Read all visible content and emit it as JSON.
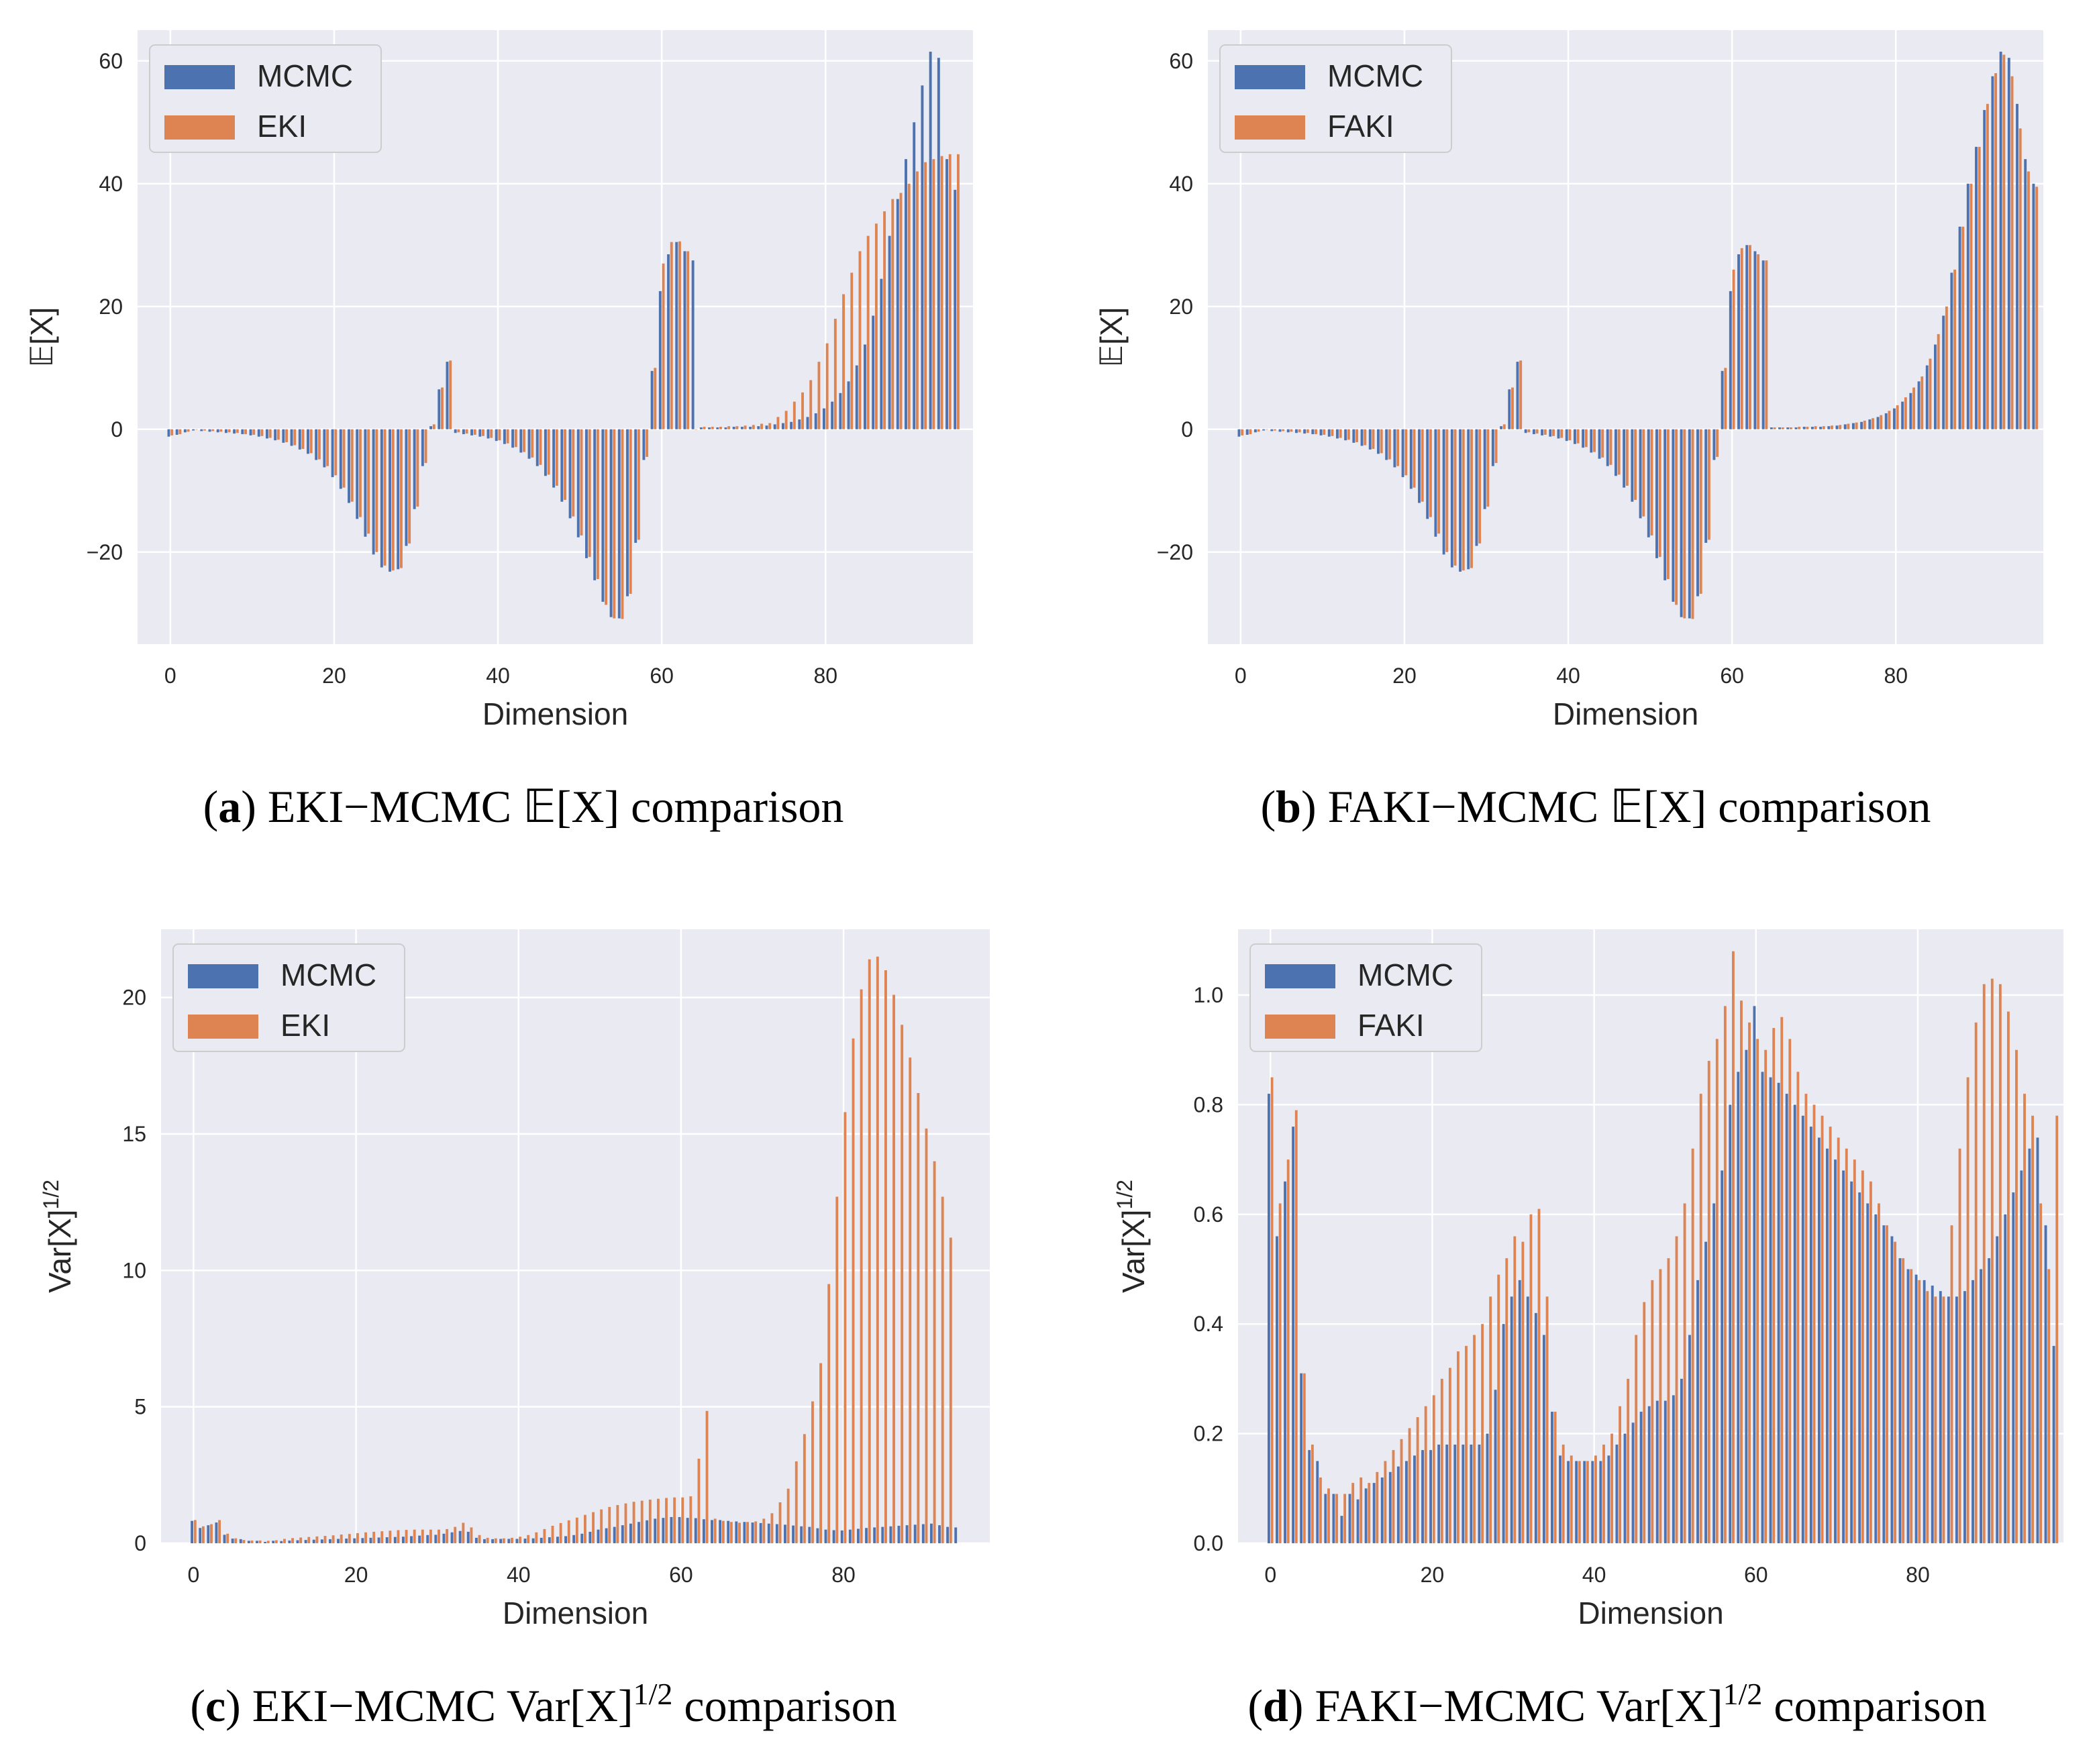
{
  "colors": {
    "mcmc": "#4c72b0",
    "alt": "#dd8452",
    "plot_bg": "#eaeaf2",
    "grid": "#ffffff",
    "text": "#262626"
  },
  "chart_data": [
    {
      "type": "bar",
      "panel": "a",
      "xlabel": "Dimension",
      "ylabel": "𝔼[X]",
      "xlim": [
        -4,
        98
      ],
      "ylim": [
        -35,
        65
      ],
      "xticks": [
        "0",
        "20",
        "40",
        "60",
        "80"
      ],
      "yticks": [
        "−20",
        "0",
        "20",
        "40",
        "60"
      ],
      "ytick_values": [
        -20,
        0,
        20,
        40,
        60
      ],
      "legend_position": "upper-left",
      "caption": {
        "letter": "a",
        "text": ") EKI−MCMC 𝔼[X] comparison"
      },
      "series": [
        {
          "name": "MCMC",
          "values": [
            -1.2,
            -0.9,
            -0.5,
            -0.2,
            -0.3,
            -0.4,
            -0.5,
            -0.6,
            -0.7,
            -0.8,
            -1.0,
            -1.2,
            -1.5,
            -1.8,
            -2.2,
            -2.7,
            -3.3,
            -4.0,
            -5.0,
            -6.2,
            -7.8,
            -9.7,
            -12.0,
            -14.6,
            -17.5,
            -20.4,
            -22.5,
            -23.2,
            -22.8,
            -19.0,
            -13.0,
            -6.0,
            0.5,
            6.5,
            11.0,
            -0.6,
            -0.8,
            -1.0,
            -1.2,
            -1.5,
            -1.9,
            -2.4,
            -3.0,
            -3.8,
            -4.8,
            -6.0,
            -7.6,
            -9.5,
            -11.8,
            -14.5,
            -17.6,
            -21.0,
            -24.6,
            -28.1,
            -30.6,
            -30.8,
            -27.2,
            -18.5,
            -5.0,
            9.5,
            22.5,
            28.5,
            30.5,
            29.0,
            27.5,
            0.3,
            0.3,
            0.3,
            0.3,
            0.4,
            0.4,
            0.4,
            0.5,
            0.6,
            0.8,
            1.0,
            1.2,
            1.6,
            2.0,
            2.6,
            3.4,
            4.5,
            5.9,
            7.8,
            10.4,
            13.8,
            18.5,
            24.5,
            31.5,
            37.5,
            44.0,
            50.0,
            56.0,
            61.5,
            60.5,
            44.0,
            39.0
          ]
        },
        {
          "name": "EKI",
          "values": [
            -1.0,
            -0.8,
            -0.4,
            0.0,
            -0.2,
            -0.3,
            -0.4,
            -0.5,
            -0.6,
            -0.8,
            -0.9,
            -1.1,
            -1.4,
            -1.7,
            -2.1,
            -2.6,
            -3.2,
            -3.9,
            -4.9,
            -6.0,
            -7.5,
            -9.5,
            -11.8,
            -14.3,
            -17.0,
            -20.0,
            -22.2,
            -23.0,
            -22.6,
            -18.6,
            -12.6,
            -5.5,
            0.8,
            6.8,
            11.2,
            -0.5,
            -0.7,
            -0.9,
            -1.1,
            -1.4,
            -1.8,
            -2.3,
            -2.9,
            -3.7,
            -4.6,
            -5.8,
            -7.4,
            -9.2,
            -11.5,
            -14.2,
            -17.3,
            -20.8,
            -24.4,
            -28.6,
            -30.8,
            -30.9,
            -26.8,
            -18.0,
            -4.5,
            10.0,
            27.0,
            30.5,
            30.6,
            29.0,
            0.0,
            0.4,
            0.4,
            0.4,
            0.5,
            0.5,
            0.6,
            0.7,
            0.9,
            1.0,
            2.0,
            3.0,
            4.5,
            6.0,
            8.0,
            11.0,
            14.0,
            18.0,
            22.0,
            25.5,
            29.0,
            31.5,
            33.5,
            35.5,
            37.5,
            38.5,
            40.0,
            42.0,
            43.5,
            44.0,
            44.5,
            44.8,
            44.8
          ]
        }
      ]
    },
    {
      "type": "bar",
      "panel": "b",
      "xlabel": "Dimension",
      "ylabel": "𝔼[X]",
      "xlim": [
        -4,
        98
      ],
      "ylim": [
        -35,
        65
      ],
      "xticks": [
        "0",
        "20",
        "40",
        "60",
        "80"
      ],
      "yticks": [
        "−20",
        "0",
        "20",
        "40",
        "60"
      ],
      "ytick_values": [
        -20,
        0,
        20,
        40,
        60
      ],
      "legend_position": "upper-left",
      "caption": {
        "letter": "b",
        "text": ") FAKI−MCMC 𝔼[X] comparison"
      },
      "series": [
        {
          "name": "MCMC",
          "values": [
            -1.2,
            -0.9,
            -0.5,
            -0.2,
            -0.3,
            -0.4,
            -0.5,
            -0.6,
            -0.7,
            -0.8,
            -1.0,
            -1.2,
            -1.5,
            -1.8,
            -2.2,
            -2.7,
            -3.3,
            -4.0,
            -5.0,
            -6.2,
            -7.8,
            -9.7,
            -12.0,
            -14.6,
            -17.5,
            -20.4,
            -22.5,
            -23.2,
            -22.8,
            -19.0,
            -13.0,
            -6.0,
            0.5,
            6.5,
            11.0,
            -0.6,
            -0.8,
            -1.0,
            -1.2,
            -1.5,
            -1.9,
            -2.4,
            -3.0,
            -3.8,
            -4.8,
            -6.0,
            -7.6,
            -9.5,
            -11.8,
            -14.5,
            -17.6,
            -21.0,
            -24.6,
            -28.1,
            -30.6,
            -30.8,
            -27.2,
            -18.5,
            -5.0,
            9.5,
            22.5,
            28.5,
            30.0,
            29.0,
            27.5,
            0.3,
            0.3,
            0.3,
            0.3,
            0.4,
            0.4,
            0.4,
            0.5,
            0.6,
            0.8,
            1.0,
            1.2,
            1.6,
            2.0,
            2.6,
            3.4,
            4.5,
            5.9,
            7.8,
            10.4,
            13.8,
            18.5,
            25.5,
            33.0,
            40.0,
            46.0,
            52.0,
            57.5,
            61.5,
            60.5,
            53.0,
            44.0,
            40.0
          ]
        },
        {
          "name": "FAKI",
          "values": [
            -1.0,
            -0.8,
            -0.4,
            0.0,
            -0.2,
            -0.3,
            -0.4,
            -0.5,
            -0.6,
            -0.8,
            -0.9,
            -1.1,
            -1.4,
            -1.7,
            -2.1,
            -2.6,
            -3.2,
            -3.9,
            -4.9,
            -6.0,
            -7.5,
            -9.5,
            -11.8,
            -14.3,
            -17.0,
            -20.0,
            -22.2,
            -23.0,
            -22.6,
            -18.6,
            -12.6,
            -5.5,
            0.8,
            6.8,
            11.2,
            -0.5,
            -0.7,
            -0.9,
            -1.1,
            -1.4,
            -1.8,
            -2.3,
            -2.9,
            -3.7,
            -4.6,
            -5.8,
            -7.4,
            -9.2,
            -11.5,
            -14.2,
            -17.3,
            -20.8,
            -24.4,
            -28.6,
            -30.8,
            -30.9,
            -26.8,
            -18.0,
            -4.5,
            10.0,
            26.0,
            29.5,
            30.0,
            28.5,
            27.5,
            0.3,
            0.3,
            0.3,
            0.4,
            0.4,
            0.5,
            0.5,
            0.6,
            0.7,
            0.9,
            1.1,
            1.4,
            1.8,
            2.3,
            3.0,
            3.9,
            5.2,
            6.8,
            8.6,
            11.5,
            15.5,
            20.0,
            26.0,
            33.0,
            40.0,
            46.0,
            53.0,
            58.0,
            61.0,
            57.5,
            49.0,
            42.0,
            39.5
          ]
        }
      ]
    },
    {
      "type": "bar",
      "panel": "c",
      "xlabel": "Dimension",
      "ylabel": "Var[X]",
      "ylabel_sup": "1/2",
      "xlim": [
        -4,
        98
      ],
      "ylim": [
        0,
        22.5
      ],
      "xticks": [
        "0",
        "20",
        "40",
        "60",
        "80"
      ],
      "yticks": [
        "0",
        "5",
        "10",
        "15",
        "20"
      ],
      "ytick_values": [
        0,
        5,
        10,
        15,
        20
      ],
      "legend_position": "upper-left",
      "caption": {
        "letter": "c",
        "text": ") EKI−MCMC Var[X]",
        "sup": "1/2",
        "tail": " comparison"
      },
      "series": [
        {
          "name": "MCMC",
          "values": [
            0.82,
            0.56,
            0.66,
            0.76,
            0.31,
            0.17,
            0.15,
            0.09,
            0.09,
            0.05,
            0.09,
            0.08,
            0.1,
            0.11,
            0.12,
            0.13,
            0.14,
            0.15,
            0.16,
            0.17,
            0.18,
            0.19,
            0.2,
            0.21,
            0.22,
            0.23,
            0.24,
            0.26,
            0.28,
            0.3,
            0.31,
            0.35,
            0.4,
            0.45,
            0.42,
            0.2,
            0.15,
            0.15,
            0.16,
            0.16,
            0.16,
            0.17,
            0.18,
            0.2,
            0.22,
            0.24,
            0.26,
            0.3,
            0.35,
            0.42,
            0.5,
            0.55,
            0.6,
            0.66,
            0.72,
            0.78,
            0.84,
            0.9,
            0.93,
            0.96,
            0.96,
            0.93,
            0.92,
            0.88,
            0.85,
            0.85,
            0.82,
            0.8,
            0.78,
            0.76,
            0.74,
            0.72,
            0.7,
            0.68,
            0.65,
            0.62,
            0.6,
            0.55,
            0.5,
            0.48,
            0.47,
            0.5,
            0.53,
            0.56,
            0.58,
            0.6,
            0.62,
            0.64,
            0.66,
            0.68,
            0.7,
            0.72,
            0.66,
            0.6,
            0.58
          ]
        },
        {
          "name": "EKI",
          "values": [
            0.85,
            0.62,
            0.7,
            0.85,
            0.35,
            0.18,
            0.12,
            0.1,
            0.1,
            0.09,
            0.11,
            0.16,
            0.19,
            0.21,
            0.23,
            0.25,
            0.27,
            0.29,
            0.32,
            0.34,
            0.37,
            0.4,
            0.42,
            0.44,
            0.46,
            0.48,
            0.49,
            0.5,
            0.5,
            0.5,
            0.5,
            0.52,
            0.6,
            0.75,
            0.58,
            0.3,
            0.2,
            0.18,
            0.18,
            0.2,
            0.24,
            0.3,
            0.4,
            0.52,
            0.64,
            0.74,
            0.84,
            0.94,
            1.04,
            1.14,
            1.24,
            1.33,
            1.4,
            1.46,
            1.52,
            1.56,
            1.6,
            1.63,
            1.66,
            1.68,
            1.68,
            1.72,
            3.1,
            4.85,
            0.9,
            0.82,
            0.78,
            0.75,
            0.78,
            0.8,
            0.9,
            1.1,
            1.5,
            2.0,
            3.0,
            4.0,
            5.2,
            6.6,
            9.5,
            12.7,
            15.8,
            18.5,
            20.3,
            21.4,
            21.5,
            21.0,
            20.1,
            19.0,
            17.8,
            16.5,
            15.2,
            14.0,
            12.7,
            11.2
          ]
        }
      ]
    },
    {
      "type": "bar",
      "panel": "d",
      "xlabel": "Dimension",
      "ylabel": "Var[X]",
      "ylabel_sup": "1/2",
      "xlim": [
        -4,
        98
      ],
      "ylim": [
        0,
        1.12
      ],
      "xticks": [
        "0",
        "20",
        "40",
        "60",
        "80"
      ],
      "yticks": [
        "0.0",
        "0.2",
        "0.4",
        "0.6",
        "0.8",
        "1.0"
      ],
      "ytick_values": [
        0,
        0.2,
        0.4,
        0.6,
        0.8,
        1.0
      ],
      "legend_position": "upper-left",
      "caption": {
        "letter": "d",
        "text": ") FAKI−MCMC Var[X]",
        "sup": "1/2",
        "tail": " comparison"
      },
      "series": [
        {
          "name": "MCMC",
          "values": [
            0.82,
            0.56,
            0.66,
            0.76,
            0.31,
            0.17,
            0.15,
            0.09,
            0.09,
            0.05,
            0.09,
            0.08,
            0.1,
            0.11,
            0.12,
            0.13,
            0.14,
            0.15,
            0.16,
            0.17,
            0.17,
            0.18,
            0.18,
            0.18,
            0.18,
            0.18,
            0.18,
            0.2,
            0.28,
            0.4,
            0.45,
            0.48,
            0.45,
            0.42,
            0.38,
            0.24,
            0.16,
            0.15,
            0.15,
            0.15,
            0.15,
            0.15,
            0.16,
            0.18,
            0.2,
            0.22,
            0.24,
            0.25,
            0.26,
            0.26,
            0.27,
            0.3,
            0.38,
            0.48,
            0.55,
            0.62,
            0.68,
            0.8,
            0.86,
            0.9,
            0.98,
            0.86,
            0.85,
            0.84,
            0.82,
            0.8,
            0.78,
            0.76,
            0.74,
            0.72,
            0.7,
            0.68,
            0.66,
            0.64,
            0.62,
            0.6,
            0.58,
            0.56,
            0.52,
            0.5,
            0.49,
            0.48,
            0.47,
            0.46,
            0.45,
            0.45,
            0.46,
            0.48,
            0.5,
            0.52,
            0.56,
            0.6,
            0.64,
            0.68,
            0.72,
            0.74,
            0.58,
            0.36
          ]
        },
        {
          "name": "FAKI",
          "values": [
            0.85,
            0.62,
            0.7,
            0.79,
            0.31,
            0.18,
            0.12,
            0.1,
            0.09,
            0.09,
            0.11,
            0.12,
            0.11,
            0.13,
            0.15,
            0.17,
            0.19,
            0.21,
            0.23,
            0.25,
            0.27,
            0.3,
            0.32,
            0.35,
            0.36,
            0.38,
            0.4,
            0.45,
            0.49,
            0.52,
            0.56,
            0.55,
            0.6,
            0.61,
            0.45,
            0.24,
            0.18,
            0.16,
            0.15,
            0.15,
            0.16,
            0.18,
            0.2,
            0.25,
            0.3,
            0.38,
            0.44,
            0.48,
            0.5,
            0.52,
            0.56,
            0.62,
            0.72,
            0.82,
            0.88,
            0.92,
            0.98,
            1.08,
            0.99,
            0.95,
            0.92,
            0.9,
            0.94,
            0.96,
            0.92,
            0.86,
            0.82,
            0.8,
            0.78,
            0.76,
            0.74,
            0.72,
            0.7,
            0.68,
            0.66,
            0.62,
            0.58,
            0.55,
            0.52,
            0.5,
            0.48,
            0.46,
            0.45,
            0.45,
            0.58,
            0.72,
            0.85,
            0.95,
            1.02,
            1.03,
            1.02,
            0.97,
            0.9,
            0.82,
            0.78,
            0.62,
            0.5,
            0.78
          ]
        }
      ]
    }
  ]
}
